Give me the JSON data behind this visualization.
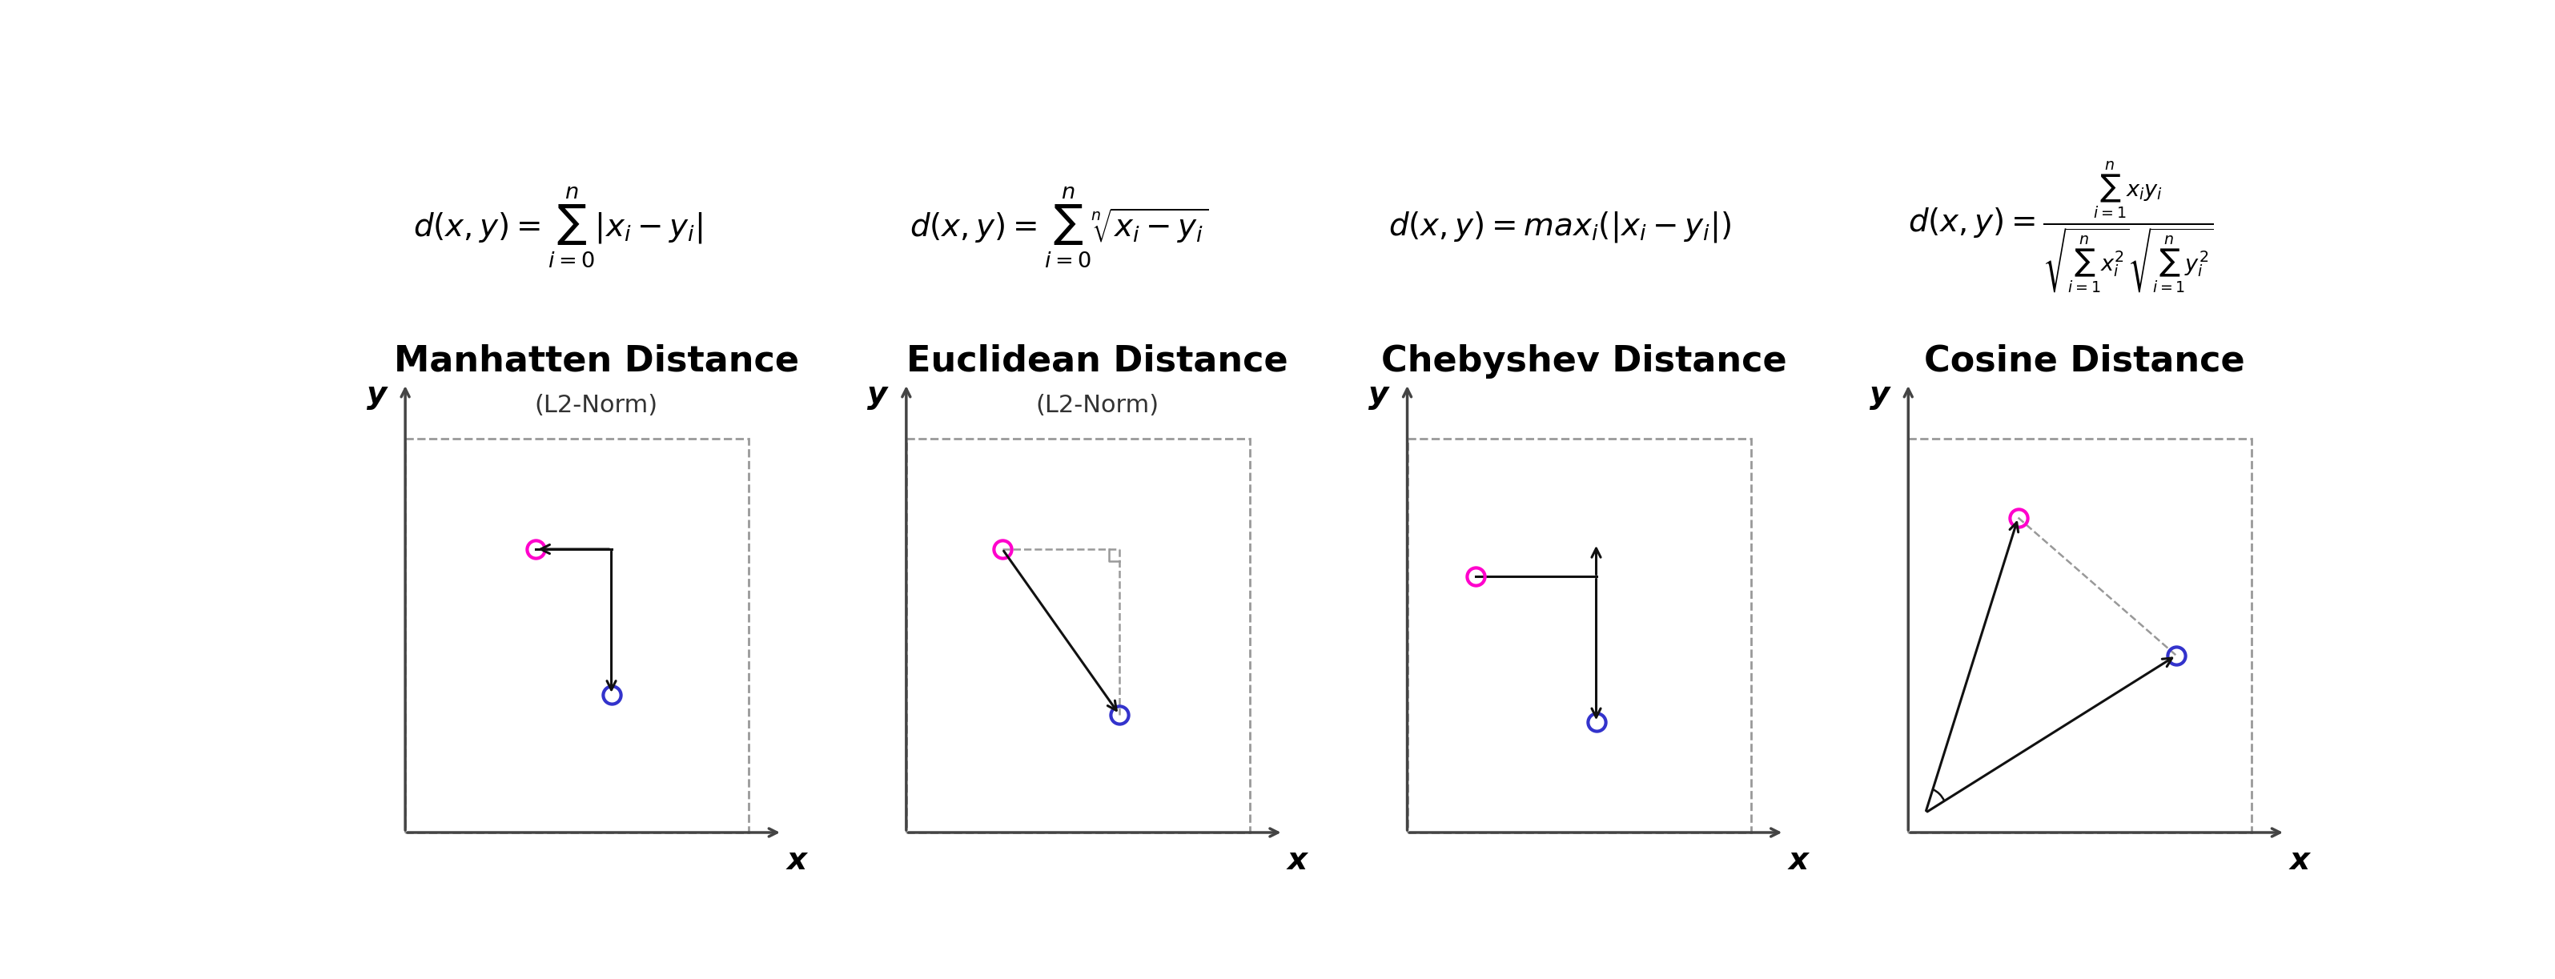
{
  "fig_width": 31.91,
  "fig_height": 12.23,
  "background_color": "#ffffff",
  "formula_texts": [
    "$d(x,y) = \\sum_{i=0}^{n} |x_i - y_i|$",
    "$d(x,y) = \\sum_{i=0}^{n} \\sqrt[n]{x_i - y_i}$",
    "$d(x,y) = max_i(|x_i - y_i|)$",
    "$d(x,y) = \\frac{\\sum_{i=1}^{n} x_i y_i}{\\sqrt{\\sum_{i=1}^{n} x_i^2}\\sqrt{\\sum_{i=1}^{n} y_i^2}}$"
  ],
  "title1": "Manhatten Distance",
  "subtitle1": "(L2-Norm)",
  "title2": "Euclidean Distance",
  "subtitle2": "(L2-Norm)",
  "title3": "Chebyshev Distance",
  "title4": "Cosine Distance",
  "color_A": "#ff00cc",
  "color_B": "#3333cc",
  "arrow_color": "#111111",
  "axis_color": "#444444",
  "dashed_color": "#999999",
  "formula_fontsize": 28,
  "title_fontsize": 32,
  "subtitle_fontsize": 22,
  "axis_label_fontsize": 28
}
